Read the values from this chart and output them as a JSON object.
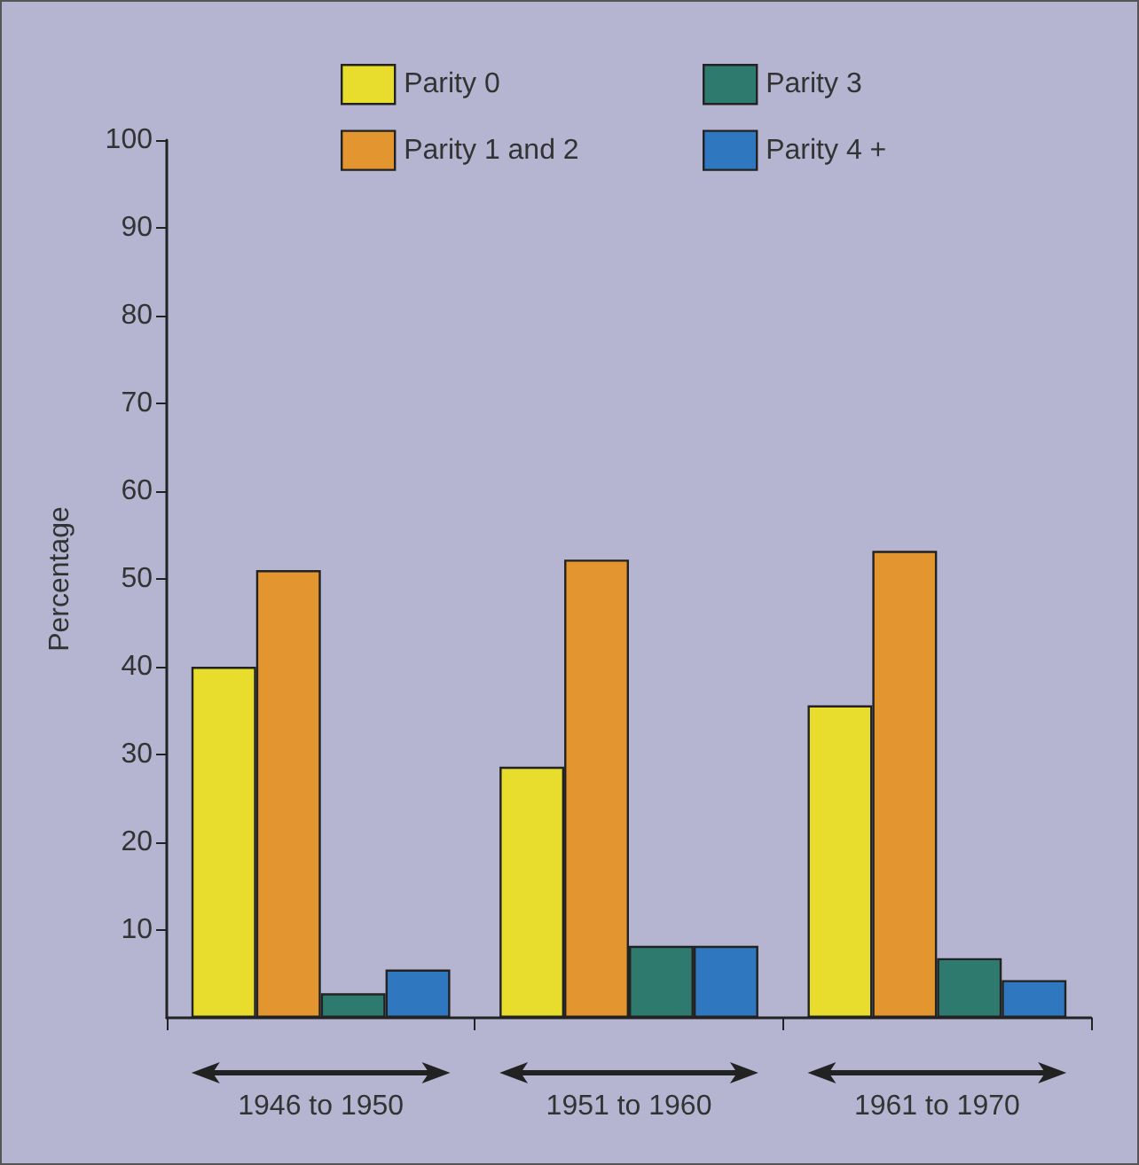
{
  "chart_data": {
    "type": "bar",
    "ylabel": "Percentage",
    "categories": [
      "1946 to 1950",
      "1951 to 1960",
      "1961 to 1970"
    ],
    "series": [
      {
        "name": "Parity 0",
        "color": "#e8dc2c",
        "values": [
          40,
          28.6,
          35.6
        ]
      },
      {
        "name": "Parity 1 and 2",
        "color": "#e39530",
        "values": [
          51,
          52.2,
          53.2
        ]
      },
      {
        "name": "Parity 3",
        "color": "#2e7a6e",
        "values": [
          2.8,
          8.2,
          6.8
        ]
      },
      {
        "name": "Parity 4 +",
        "color": "#2f78c0",
        "values": [
          5.5,
          8.2,
          4.3
        ]
      }
    ],
    "ylim": [
      0,
      100
    ],
    "yticks": [
      10,
      20,
      30,
      40,
      50,
      60,
      70,
      80,
      90,
      100
    ],
    "grid": false,
    "legend": "top"
  }
}
